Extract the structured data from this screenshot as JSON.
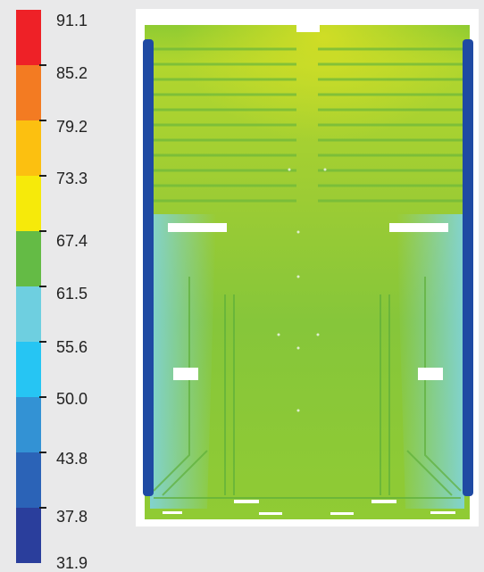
{
  "legend": {
    "labels": [
      "91.1",
      "85.2",
      "79.2",
      "73.3",
      "67.4",
      "61.5",
      "55.6",
      "50.0",
      "43.8",
      "37.8",
      "31.9"
    ],
    "colors": [
      "#ee2127",
      "#f37b22",
      "#fcc010",
      "#f6ea0a",
      "#64bb45",
      "#6ecfe0",
      "#26c5f3",
      "#3392d4",
      "#2b63b7",
      "#2a3e9c"
    ]
  },
  "figure": {
    "rail_color": "#1f4aa3",
    "mid_color": "#7dc63a",
    "top_color": "#b8d92c",
    "edge_color": "#7fd4ea"
  }
}
